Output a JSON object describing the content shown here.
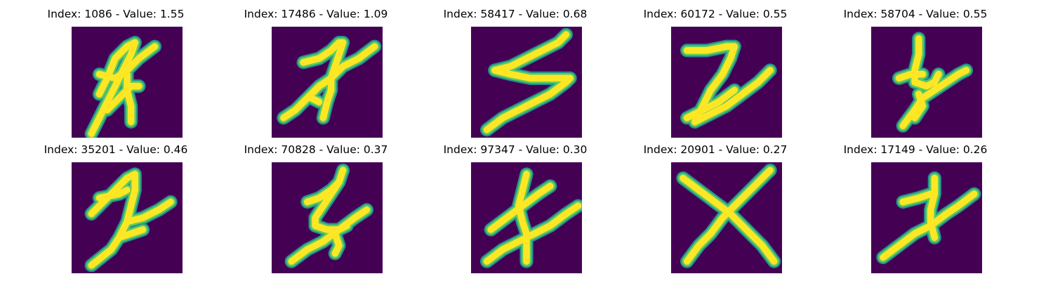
{
  "chart_data": {
    "type": "image-grid",
    "colormap": "viridis",
    "colors": {
      "background": "#440154",
      "stroke_core": "#fde725",
      "stroke_edge": "#5ec962",
      "stroke_mid": "#21918c"
    },
    "panels": [
      {
        "title": "Index: 1086 - Value: 1.55",
        "index": 1086,
        "value": 1.55
      },
      {
        "title": "Index: 17486 - Value: 1.09",
        "index": 17486,
        "value": 1.09
      },
      {
        "title": "Index: 58417 - Value: 0.68",
        "index": 58417,
        "value": 0.68
      },
      {
        "title": "Index: 60172 - Value: 0.55",
        "index": 60172,
        "value": 0.55
      },
      {
        "title": "Index: 58704 - Value: 0.55",
        "index": 58704,
        "value": 0.55
      },
      {
        "title": "Index: 35201 - Value: 0.46",
        "index": 35201,
        "value": 0.46
      },
      {
        "title": "Index: 70828 - Value: 0.37",
        "index": 70828,
        "value": 0.37
      },
      {
        "title": "Index: 97347 - Value: 0.30",
        "index": 97347,
        "value": 0.3
      },
      {
        "title": "Index: 20901 - Value: 0.27",
        "index": 20901,
        "value": 0.27
      },
      {
        "title": "Index: 17149 - Value: 0.26",
        "index": 17149,
        "value": 0.26
      }
    ]
  }
}
